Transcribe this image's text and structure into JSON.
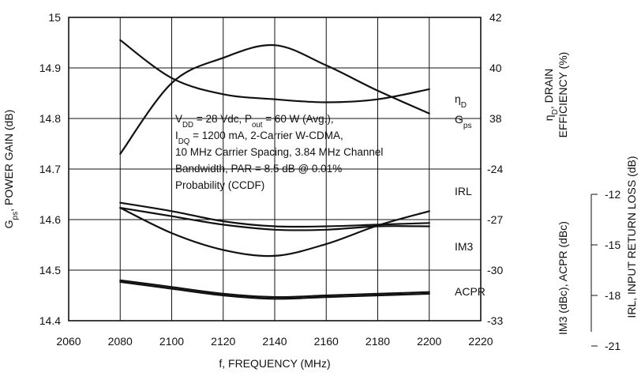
{
  "chart_data": {
    "type": "line",
    "xlabel": "f, FREQUENCY (MHz)",
    "x_ticks": [
      2060,
      2080,
      2100,
      2120,
      2140,
      2160,
      2180,
      2200,
      2220
    ],
    "xlim": [
      2060,
      2220
    ],
    "ylabel_left": {
      "main": "G",
      "sub": "ps",
      "rest": ", POWER GAIN (dB)"
    },
    "y_left_ticks": [
      "15",
      "14.9",
      "14.8",
      "14.7",
      "14.6",
      "14.5",
      "14.4"
    ],
    "ylim_left": [
      14.4,
      15
    ],
    "ylabel_right_a_line1": {
      "pre": "η",
      "sub": "D",
      "rest": ", DRAIN"
    },
    "ylabel_right_a_line2": "EFFICIENCY (%)",
    "y_right_a_ticks": [
      "42",
      "40",
      "38"
    ],
    "y_right_b_ticks": [
      "-24",
      "-27",
      "-30",
      "-33"
    ],
    "ylabel_right_b": "IM3 (dBc), ACPR (dBc)",
    "y_right_c_ticks": [
      "-12",
      "-15",
      "-18",
      "-21"
    ],
    "ylabel_right_c": "IRL, INPUT RETURN LOSS (dB)",
    "grid": true,
    "annotation": [
      {
        "parts": [
          {
            "t": "V"
          },
          {
            "t": "DD",
            "sub": true
          },
          {
            "t": " = 28 Vdc, P"
          },
          {
            "t": "out",
            "sub": true
          },
          {
            "t": " = 60 W (Avg.),"
          }
        ]
      },
      {
        "parts": [
          {
            "t": "I"
          },
          {
            "t": "DQ",
            "sub": true
          },
          {
            "t": " = 1200 mA, 2-Carrier W-CDMA,"
          }
        ]
      },
      {
        "parts": [
          {
            "t": "10 MHz Carrier Spacing, 3.84 MHz Channel"
          }
        ]
      },
      {
        "parts": [
          {
            "t": "Bandwidth, PAR = 8.5 dB @ 0.01%"
          }
        ]
      },
      {
        "parts": [
          {
            "t": "Probability (CCDF)"
          }
        ]
      }
    ],
    "series": [
      {
        "label": {
          "pre": "η",
          "sub": "D",
          "rest": ""
        },
        "axis": "eff",
        "x": [
          2080,
          2100,
          2120,
          2140,
          2160,
          2180,
          2200
        ],
        "y": [
          36.6,
          39.4,
          40.4,
          40.9,
          40.1,
          39.1,
          38.2
        ]
      },
      {
        "label": {
          "pre": "G",
          "sub": "ps",
          "rest": ""
        },
        "axis": "gain",
        "x": [
          2080,
          2100,
          2120,
          2140,
          2160,
          2180,
          2200
        ],
        "y": [
          14.955,
          14.88,
          14.848,
          14.838,
          14.832,
          14.838,
          14.858
        ]
      },
      {
        "label": {
          "pre": "IRL",
          "sub": "",
          "rest": ""
        },
        "axis": "irl",
        "x": [
          2080,
          2100,
          2120,
          2140,
          2160,
          2180,
          2200
        ],
        "y": [
          -13.6,
          -16.6,
          -18.6,
          -19.3,
          -17.9,
          -15.7,
          -14.0
        ]
      },
      {
        "label": {
          "pre": "IM3",
          "sub": "",
          "rest": ""
        },
        "axis": "dbc",
        "x": [
          2080,
          2100,
          2120,
          2140,
          2160,
          2180,
          2200
        ],
        "y": [
          -26.0,
          -26.5,
          -27.1,
          -27.4,
          -27.4,
          -27.3,
          -27.2
        ]
      },
      {
        "label": {
          "pre": "",
          "sub": "",
          "rest": ""
        },
        "axis": "dbc",
        "x": [
          2080,
          2100,
          2120,
          2140,
          2160,
          2180,
          2200
        ],
        "y": [
          -26.3,
          -26.8,
          -27.3,
          -27.6,
          -27.6,
          -27.4,
          -27.4
        ]
      },
      {
        "label": {
          "pre": "ACPR",
          "sub": "",
          "rest": ""
        },
        "axis": "dbc",
        "x": [
          2080,
          2100,
          2120,
          2140,
          2160,
          2180,
          2200
        ],
        "y": [
          -30.6,
          -31.0,
          -31.4,
          -31.6,
          -31.5,
          -31.4,
          -31.3
        ]
      },
      {
        "label": {
          "pre": "",
          "sub": "",
          "rest": ""
        },
        "axis": "dbc",
        "x": [
          2080,
          2100,
          2120,
          2140,
          2160,
          2180,
          2200
        ],
        "y": [
          -30.7,
          -31.1,
          -31.5,
          -31.7,
          -31.6,
          -31.5,
          -31.4
        ]
      }
    ]
  }
}
